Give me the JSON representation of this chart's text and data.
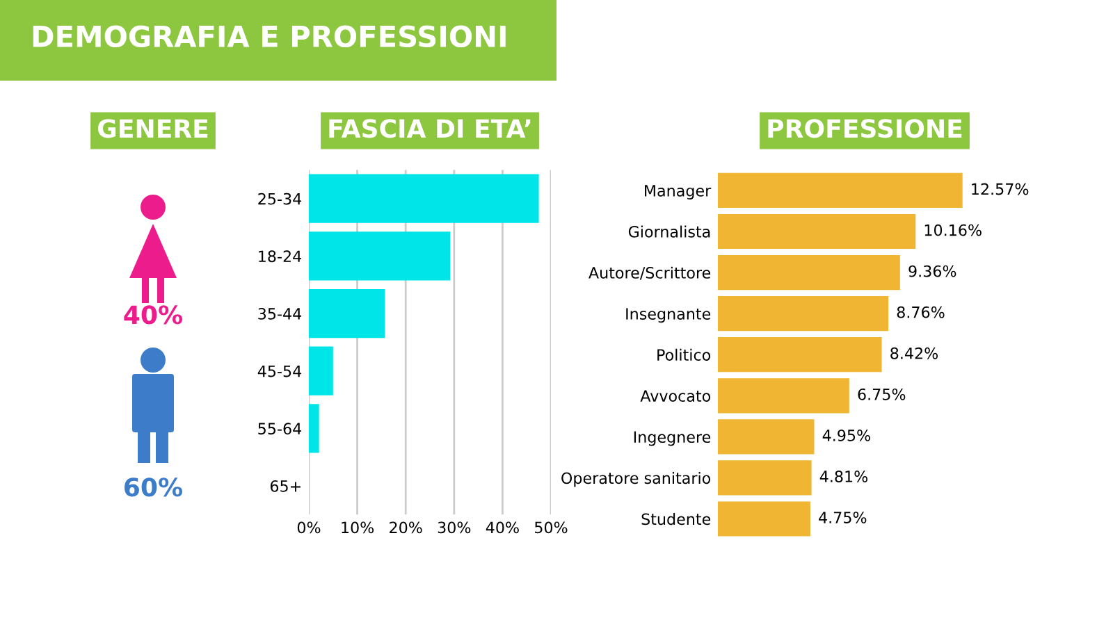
{
  "chart_data": [
    {
      "type": "other",
      "title": "DEMOGRAFIA E PROFESSIONI"
    },
    {
      "type": "other",
      "title": "GENERE",
      "categories": [
        null,
        null
      ],
      "values": [
        40,
        60
      ],
      "colors": [
        "#ec1c8c",
        "#3d7cc9"
      ],
      "value_labels": [
        "40%",
        "60%"
      ]
    },
    {
      "type": "bar",
      "title": "FASCIA DI ETA’",
      "orientation": "horizontal",
      "categories": [
        "25-34",
        "18-24",
        "35-44",
        "45-54",
        "55-64",
        "65+"
      ],
      "values": [
        47.5,
        29.2,
        15.7,
        5.0,
        2.1,
        0
      ],
      "color": "#00e5e8",
      "xlim": [
        0,
        50
      ],
      "xticks": [
        {
          "value": 0,
          "label": "0%"
        },
        {
          "value": 10,
          "label": "10%"
        },
        {
          "value": 20,
          "label": "20%"
        },
        {
          "value": 30,
          "label": "30%"
        },
        {
          "value": 40,
          "label": "40%"
        },
        {
          "value": 50,
          "label": "50%"
        }
      ],
      "grid": "x"
    },
    {
      "type": "bar",
      "title": "PROFESSIONE",
      "orientation": "horizontal",
      "categories": [
        "Manager",
        "Giornalista",
        "Autore/Scrittore",
        "Insegnante",
        "Politico",
        "Avvocato",
        "Ingegnere",
        "Operatore sanitario",
        "Studente"
      ],
      "values": [
        12.57,
        10.16,
        9.36,
        8.76,
        8.42,
        6.75,
        4.95,
        4.81,
        4.75
      ],
      "value_labels": [
        "12.57%",
        "10.16%",
        "9.36%",
        "8.76%",
        "8.42%",
        "6.75%",
        "4.95%",
        "4.81%",
        "4.75%"
      ],
      "color": "#f0b533",
      "tick_labels": "y"
    }
  ]
}
